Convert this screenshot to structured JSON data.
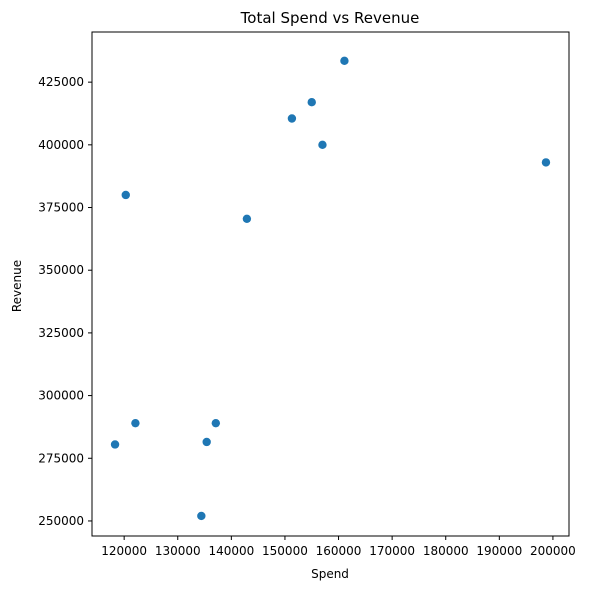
{
  "chart_data": {
    "type": "scatter",
    "title": "Total Spend vs Revenue",
    "xlabel": "Spend",
    "ylabel": "Revenue",
    "xlim": [
      114000,
      203000
    ],
    "ylim": [
      244000,
      445000
    ],
    "xticks": [
      120000,
      130000,
      140000,
      150000,
      160000,
      170000,
      180000,
      190000,
      200000
    ],
    "xtick_labels": [
      "120000",
      "130000",
      "140000",
      "150000",
      "160000",
      "170000",
      "180000",
      "190000",
      "200000"
    ],
    "yticks": [
      250000,
      275000,
      300000,
      325000,
      350000,
      375000,
      400000,
      425000
    ],
    "ytick_labels": [
      "250000",
      "275000",
      "300000",
      "325000",
      "350000",
      "375000",
      "400000",
      "425000"
    ],
    "grid": false,
    "marker_color": "#1f77b4",
    "points": [
      {
        "x": 161100,
        "y": 433500
      },
      {
        "x": 155000,
        "y": 417000
      },
      {
        "x": 151300,
        "y": 410500
      },
      {
        "x": 157000,
        "y": 400000
      },
      {
        "x": 198700,
        "y": 393000
      },
      {
        "x": 120300,
        "y": 380000
      },
      {
        "x": 142900,
        "y": 370500
      },
      {
        "x": 122100,
        "y": 289000
      },
      {
        "x": 137100,
        "y": 289000
      },
      {
        "x": 118300,
        "y": 280500
      },
      {
        "x": 135400,
        "y": 281500
      },
      {
        "x": 134400,
        "y": 252000
      }
    ]
  }
}
